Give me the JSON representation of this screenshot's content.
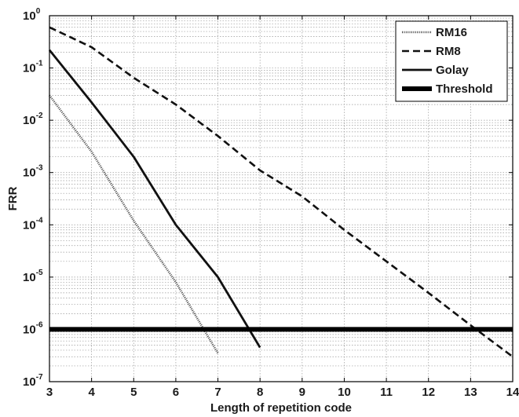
{
  "chart_data": {
    "type": "line",
    "xlabel": "Length of repetition code",
    "ylabel": "FRR",
    "xlim": [
      3,
      14
    ],
    "ylim": [
      1e-07,
      1
    ],
    "yscale": "log",
    "grid": true,
    "legend_position": "top-right",
    "x_ticks": [
      "3",
      "4",
      "5",
      "6",
      "7",
      "8",
      "9",
      "10",
      "11",
      "12",
      "13",
      "14"
    ],
    "y_ticks": [
      {
        "value": 1e-07,
        "base": "10",
        "exp": "-7"
      },
      {
        "value": 1e-06,
        "base": "10",
        "exp": "-6"
      },
      {
        "value": 1e-05,
        "base": "10",
        "exp": "-5"
      },
      {
        "value": 0.0001,
        "base": "10",
        "exp": "-4"
      },
      {
        "value": 0.001,
        "base": "10",
        "exp": "-3"
      },
      {
        "value": 0.01,
        "base": "10",
        "exp": "-2"
      },
      {
        "value": 0.1,
        "base": "10",
        "exp": "-1"
      },
      {
        "value": 1,
        "base": "10",
        "exp": "0"
      }
    ],
    "series": [
      {
        "name": "RM16",
        "style": "dotted",
        "color": "#444444",
        "points": [
          [
            3,
            0.03
          ],
          [
            4,
            0.0025
          ],
          [
            5,
            0.00012
          ],
          [
            6,
            8e-06
          ],
          [
            7,
            3.5e-07
          ]
        ]
      },
      {
        "name": "RM8",
        "style": "dashed",
        "color": "#111111",
        "points": [
          [
            3,
            0.6
          ],
          [
            4,
            0.25
          ],
          [
            5,
            0.065
          ],
          [
            6,
            0.02
          ],
          [
            7,
            0.005
          ],
          [
            8,
            0.0011
          ],
          [
            9,
            0.00035
          ],
          [
            10,
            8e-05
          ],
          [
            11,
            2e-05
          ],
          [
            12,
            5e-06
          ],
          [
            13,
            1.2e-06
          ],
          [
            14,
            3e-07
          ]
        ]
      },
      {
        "name": "Golay",
        "style": "solid",
        "color": "#111111",
        "points": [
          [
            3,
            0.22
          ],
          [
            4,
            0.022
          ],
          [
            5,
            0.002
          ],
          [
            6,
            0.0001
          ],
          [
            7,
            1e-05
          ],
          [
            8,
            4.5e-07
          ]
        ]
      },
      {
        "name": "Threshold",
        "style": "thick",
        "color": "#000000",
        "points": [
          [
            3,
            1e-06
          ],
          [
            14,
            1e-06
          ]
        ]
      }
    ]
  }
}
